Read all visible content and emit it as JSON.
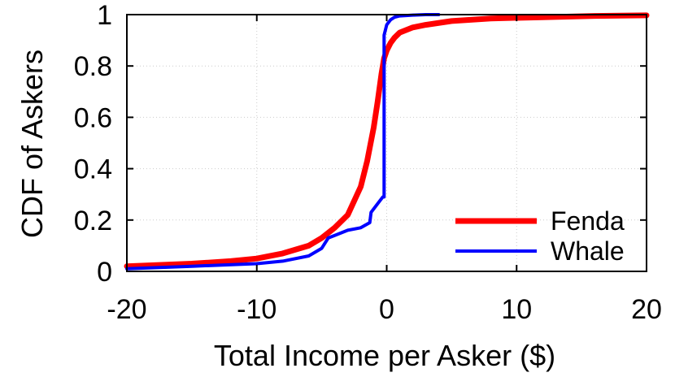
{
  "chart_data": {
    "type": "line",
    "title": "",
    "xlabel": "Total Income per Asker ($)",
    "ylabel": "CDF of Askers",
    "xlim": [
      -20,
      20
    ],
    "ylim": [
      0,
      1
    ],
    "xticks": [
      -20,
      -10,
      0,
      10,
      20
    ],
    "yticks": [
      0,
      0.2,
      0.4,
      0.6,
      0.8,
      1
    ],
    "xtick_labels": [
      "-20",
      "-10",
      "0",
      "10",
      "20"
    ],
    "ytick_labels": [
      "0",
      "0.2",
      "0.4",
      "0.6",
      "0.8",
      "1"
    ],
    "grid": true,
    "legend_position": "bottom-right",
    "series": [
      {
        "name": "Fenda",
        "color": "#ff0000",
        "x": [
          -20,
          -15,
          -12,
          -10,
          -8,
          -6,
          -5,
          -4,
          -3,
          -2,
          -1.5,
          -1,
          -0.7,
          -0.4,
          -0.2,
          0,
          0.3,
          0.6,
          1,
          2,
          3,
          5,
          8,
          12,
          16,
          20
        ],
        "y": [
          0.02,
          0.03,
          0.04,
          0.05,
          0.07,
          0.1,
          0.13,
          0.17,
          0.22,
          0.33,
          0.43,
          0.56,
          0.66,
          0.77,
          0.83,
          0.86,
          0.89,
          0.91,
          0.93,
          0.95,
          0.96,
          0.975,
          0.985,
          0.99,
          0.995,
          0.997
        ]
      },
      {
        "name": "Whale",
        "color": "#0000ff",
        "x": [
          -20,
          -15,
          -10,
          -8,
          -6,
          -5,
          -4.5,
          -4,
          -3,
          -2,
          -1.3,
          -1.2,
          -0.6,
          -0.3,
          -0.2,
          -0.2,
          0,
          0.3,
          0.6,
          1,
          2,
          3,
          4
        ],
        "y": [
          0.01,
          0.02,
          0.03,
          0.04,
          0.06,
          0.09,
          0.13,
          0.14,
          0.16,
          0.17,
          0.19,
          0.23,
          0.27,
          0.29,
          0.29,
          0.92,
          0.96,
          0.98,
          0.99,
          0.995,
          0.998,
          1.0,
          1.0
        ]
      }
    ]
  }
}
